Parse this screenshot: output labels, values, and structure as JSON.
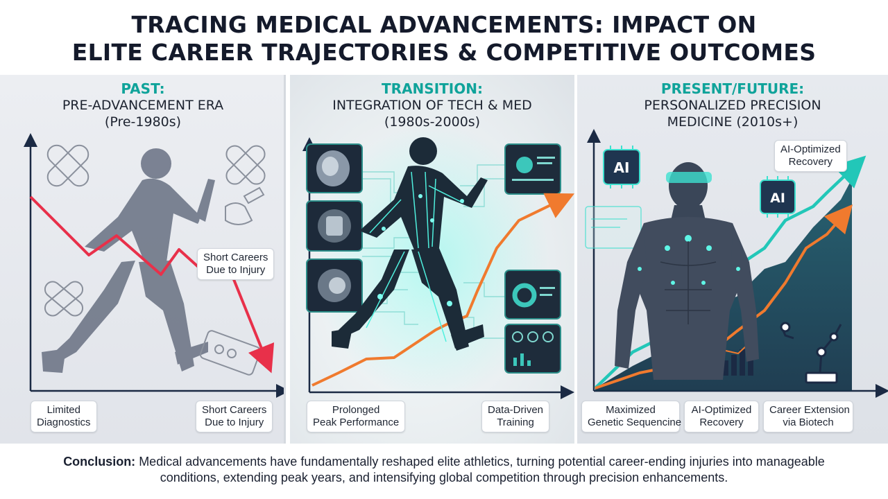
{
  "title": {
    "line1": "TRACING MEDICAL ADVANCEMENTS: IMPACT ON",
    "line2": "ELITE CAREER TRAJECTORIES & COMPETITIVE OUTCOMES"
  },
  "panels": [
    {
      "era": "PAST:",
      "subtitle_line1": "PRE-ADVANCEMENT ERA",
      "subtitle_line2": "(Pre-1980s)",
      "callout": {
        "line1": "Short Careers",
        "line2": "Due to Injury"
      },
      "labels": [
        {
          "line1": "Limited",
          "line2": "Diagnostics"
        },
        {
          "line1": "Short Careers",
          "line2": "Due to Injury"
        }
      ]
    },
    {
      "era": "TRANSITION:",
      "subtitle_line1": "INTEGRATION OF TECH & MED",
      "subtitle_line2": "(1980s-2000s)",
      "labels": [
        {
          "line1": "Prolonged",
          "line2": "Peak Performance"
        },
        {
          "line1": "Data-Driven",
          "line2": "Training"
        }
      ]
    },
    {
      "era": "PRESENT/FUTURE:",
      "subtitle_line1": "PERSONALIZED PRECISION",
      "subtitle_line2": "MEDICINE (2010s+)",
      "callout": {
        "line1": "AI-Optimized",
        "line2": "Recovery"
      },
      "chip_text": "AI",
      "labels": [
        {
          "line1": "Maximized",
          "line2": "Genetic Sequencine"
        },
        {
          "line1": "AI-Optimized",
          "line2": "Recovery"
        },
        {
          "line1": "Career Extension",
          "line2": "via Biotech"
        }
      ]
    }
  ],
  "conclusion": {
    "label": "Conclusion:",
    "text": " Medical advancements have fundamentally reshaped elite athletics, turning potential career-ending injuries into manageable conditions, extending peak years, and intensifying global competition through precision enhancements."
  },
  "colors": {
    "accent_teal": "#14a89c",
    "decline_red": "#e8304a",
    "growth_orange": "#f07a2e",
    "dark_navy": "#1b2a44"
  }
}
